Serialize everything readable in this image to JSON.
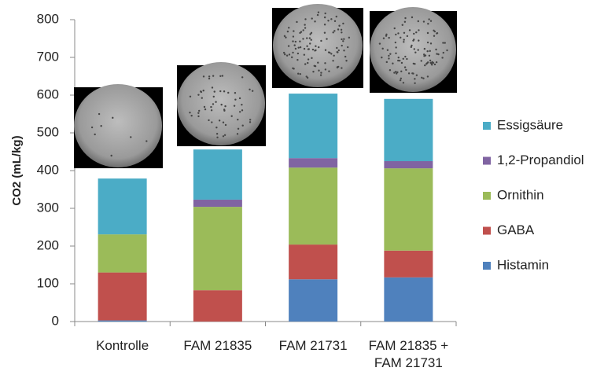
{
  "chart_data": {
    "type": "stacked-bar",
    "y_label": "CO2 (mL/kg)",
    "categories": [
      "Kontrolle",
      "FAM 21835",
      "FAM 21731",
      "FAM 21835 + FAM 21731"
    ],
    "series": [
      {
        "name": "Histamin",
        "color": "#4f81bd",
        "values": [
          3,
          0,
          112,
          117
        ]
      },
      {
        "name": "GABA",
        "color": "#c0504d",
        "values": [
          127,
          83,
          92,
          71
        ]
      },
      {
        "name": "Ornithin",
        "color": "#9bbb59",
        "values": [
          101,
          221,
          204,
          218
        ]
      },
      {
        "name": "1,2-Propandiol",
        "color": "#8064a2",
        "values": [
          0,
          19,
          25,
          19
        ]
      },
      {
        "name": "Essigsäure",
        "color": "#4bacc6",
        "values": [
          148,
          133,
          171,
          165
        ]
      }
    ],
    "ylim": [
      0,
      800
    ],
    "yticks": [
      0,
      100,
      200,
      300,
      400,
      500,
      600,
      700,
      800
    ],
    "legend": "right"
  }
}
